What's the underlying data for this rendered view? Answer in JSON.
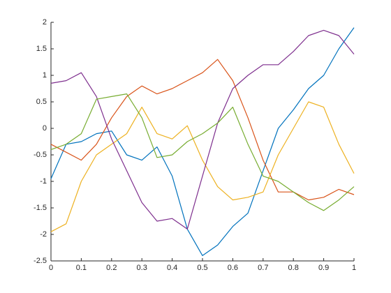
{
  "chart_data": {
    "type": "line",
    "x": [
      0,
      0.05,
      0.1,
      0.15,
      0.2,
      0.25,
      0.3,
      0.35,
      0.4,
      0.45,
      0.5,
      0.55,
      0.6,
      0.65,
      0.7,
      0.75,
      0.8,
      0.85,
      0.9,
      0.95,
      1
    ],
    "series": [
      {
        "color": "#0072BD",
        "values": [
          -0.95,
          -0.3,
          -0.25,
          -0.1,
          -0.05,
          -0.5,
          -0.6,
          -0.35,
          -0.9,
          -1.9,
          -2.4,
          -2.2,
          -1.85,
          -1.6,
          -0.8,
          0,
          0.35,
          0.75,
          1.0,
          1.5,
          1.9
        ]
      },
      {
        "color": "#D95319",
        "values": [
          -0.3,
          -0.45,
          -0.6,
          -0.3,
          0.2,
          0.6,
          0.8,
          0.65,
          0.75,
          0.9,
          1.05,
          1.3,
          0.9,
          0.2,
          -0.6,
          -1.2,
          -1.2,
          -1.35,
          -1.3,
          -1.15,
          -1.25
        ]
      },
      {
        "color": "#EDB120",
        "values": [
          -1.95,
          -1.8,
          -1.0,
          -0.5,
          -0.3,
          -0.1,
          0.4,
          -0.1,
          -0.2,
          0.05,
          -0.6,
          -1.1,
          -1.35,
          -1.3,
          -1.2,
          -0.5,
          0,
          0.5,
          0.4,
          -0.3,
          -0.85
        ]
      },
      {
        "color": "#7E2F8E",
        "values": [
          0.85,
          0.9,
          1.05,
          0.6,
          -0.2,
          -0.8,
          -1.4,
          -1.75,
          -1.7,
          -1.9,
          -0.9,
          0.1,
          0.75,
          1.0,
          1.2,
          1.2,
          1.45,
          1.75,
          1.85,
          1.75,
          1.4
        ]
      },
      {
        "color": "#77AC30",
        "values": [
          -0.4,
          -0.3,
          -0.1,
          0.55,
          0.6,
          0.65,
          0.2,
          -0.55,
          -0.5,
          -0.25,
          -0.1,
          0.1,
          0.4,
          -0.3,
          -0.9,
          -1.0,
          -1.2,
          -1.4,
          -1.55,
          -1.35,
          -1.1
        ]
      }
    ],
    "xlim": [
      0,
      1
    ],
    "xticks": [
      0,
      0.1,
      0.2,
      0.3,
      0.4,
      0.5,
      0.6,
      0.7,
      0.8,
      0.9,
      1
    ],
    "ylim": [
      -2.5,
      2
    ],
    "yticks": [
      -2.5,
      -2,
      -1.5,
      -1,
      -0.5,
      0,
      0.5,
      1,
      1.5,
      2
    ],
    "grid": false
  }
}
